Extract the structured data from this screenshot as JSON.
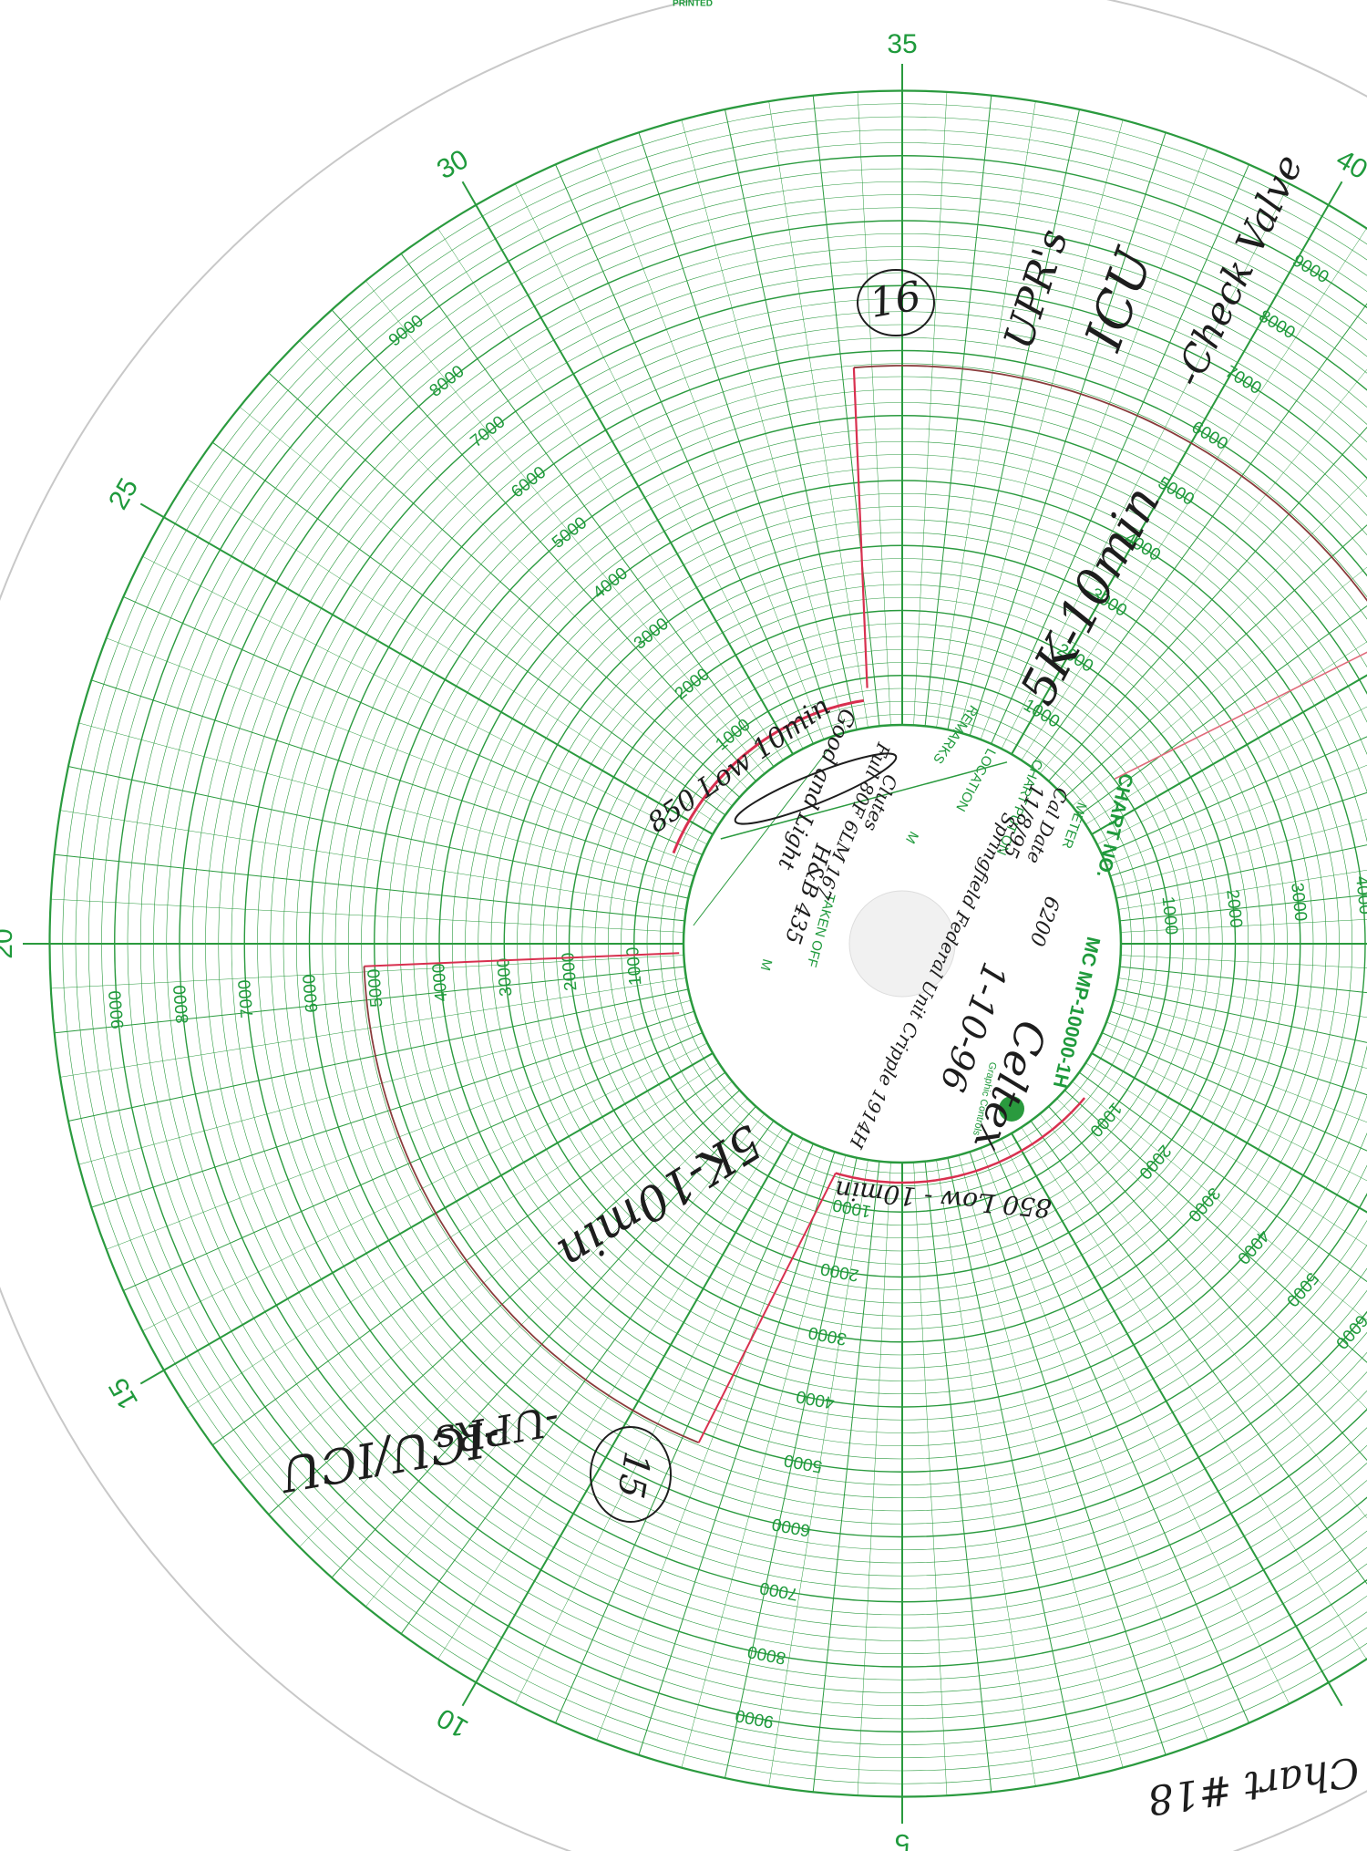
{
  "chart_paper": {
    "printed": "PRINTED",
    "time_ticks": [
      5,
      10,
      15,
      20,
      25,
      30,
      35,
      40
    ],
    "scale_ticks": [
      1000,
      2000,
      3000,
      4000,
      5000,
      6000,
      7000,
      8000,
      9000
    ],
    "hub": {
      "chart_no": "CHART NO.",
      "model": "MC MP-10000-1H",
      "meter": "METER",
      "chart_put_on": "CHART PUT ON",
      "location": "LOCATION",
      "remarks": "REMARKS",
      "taken_off": "TAKEN OFF",
      "m": "M",
      "brand": "Graphic Controls"
    }
  },
  "handwriting": [
    "16",
    "UPR's",
    "ICU",
    "-Check Valve",
    "5K-10min",
    "850 Low 10min",
    "5K-10min",
    "850 Low - 10min",
    "15",
    "-UPRs",
    "-ICU/ICU",
    "Chart #18",
    "Celtex",
    "1-10-96",
    "Springfield Federal Unit Cripple 1914H",
    "6200",
    "Cal Date",
    "11/8/95",
    "Clutes",
    "Full 80F 6LM 167",
    "H&B 435",
    "Good and Light"
  ]
}
